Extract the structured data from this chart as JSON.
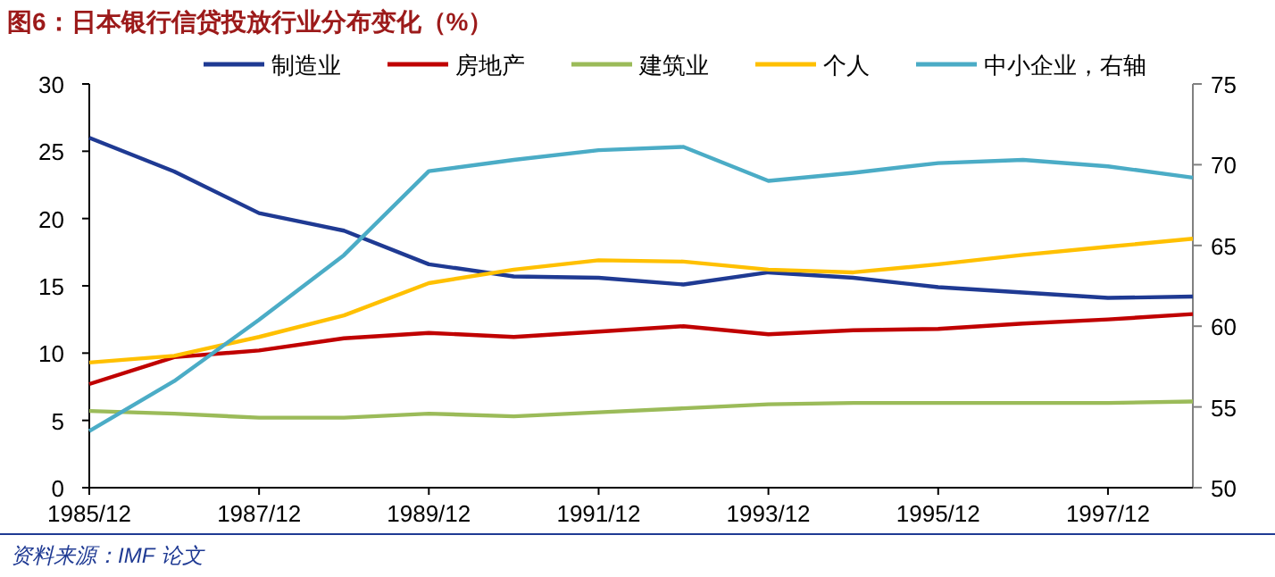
{
  "chart_data": {
    "type": "line",
    "title": "图6：日本银行信贷投放行业分布变化（%）",
    "categories": [
      "1985/12",
      null,
      "1987/12",
      null,
      "1989/12",
      null,
      "1991/12",
      null,
      "1993/12",
      null,
      "1995/12",
      null,
      "1997/12",
      null
    ],
    "series": [
      {
        "name": "制造业",
        "color": "#1f3a93",
        "values": [
          26,
          23.5,
          20.4,
          19.1,
          16.6,
          15.7,
          15.6,
          15.1,
          16,
          15.6,
          14.9,
          14.5,
          14.1,
          14.2
        ]
      },
      {
        "name": "房地产",
        "color": "#c00000",
        "values": [
          7.7,
          9.7,
          10.2,
          11.1,
          11.5,
          11.2,
          11.6,
          12,
          11.4,
          11.7,
          11.8,
          12.2,
          12.5,
          12.9
        ]
      },
      {
        "name": "建筑业",
        "color": "#9bbb59",
        "values": [
          5.7,
          5.5,
          5.2,
          5.2,
          5.5,
          5.3,
          5.6,
          5.9,
          6.2,
          6.3,
          6.3,
          6.3,
          6.3,
          6.4
        ]
      },
      {
        "name": "个人",
        "color": "#ffc000",
        "values": [
          9.3,
          9.8,
          11.2,
          12.8,
          15.2,
          16.2,
          16.9,
          16.8,
          16.2,
          16,
          16.6,
          17.3,
          17.9,
          18.5
        ]
      },
      {
        "name": "中小企业，右轴",
        "color": "#4bacc6",
        "axis": "y2",
        "values": [
          53.5,
          56.6,
          60.4,
          64.4,
          69.6,
          70.3,
          70.9,
          71.1,
          69,
          69.5,
          70.1,
          70.3,
          69.9,
          69.2
        ]
      }
    ],
    "ylim": [
      0,
      30
    ],
    "yticks": [
      0,
      5,
      10,
      15,
      20,
      25,
      30
    ],
    "y2lim": [
      50,
      75
    ],
    "y2ticks": [
      50,
      55,
      60,
      65,
      70,
      75
    ],
    "grid": false,
    "legend": "top",
    "marker": "none",
    "line_style": "solid",
    "annotations": [
      "资料来源：IMF 论文"
    ]
  }
}
